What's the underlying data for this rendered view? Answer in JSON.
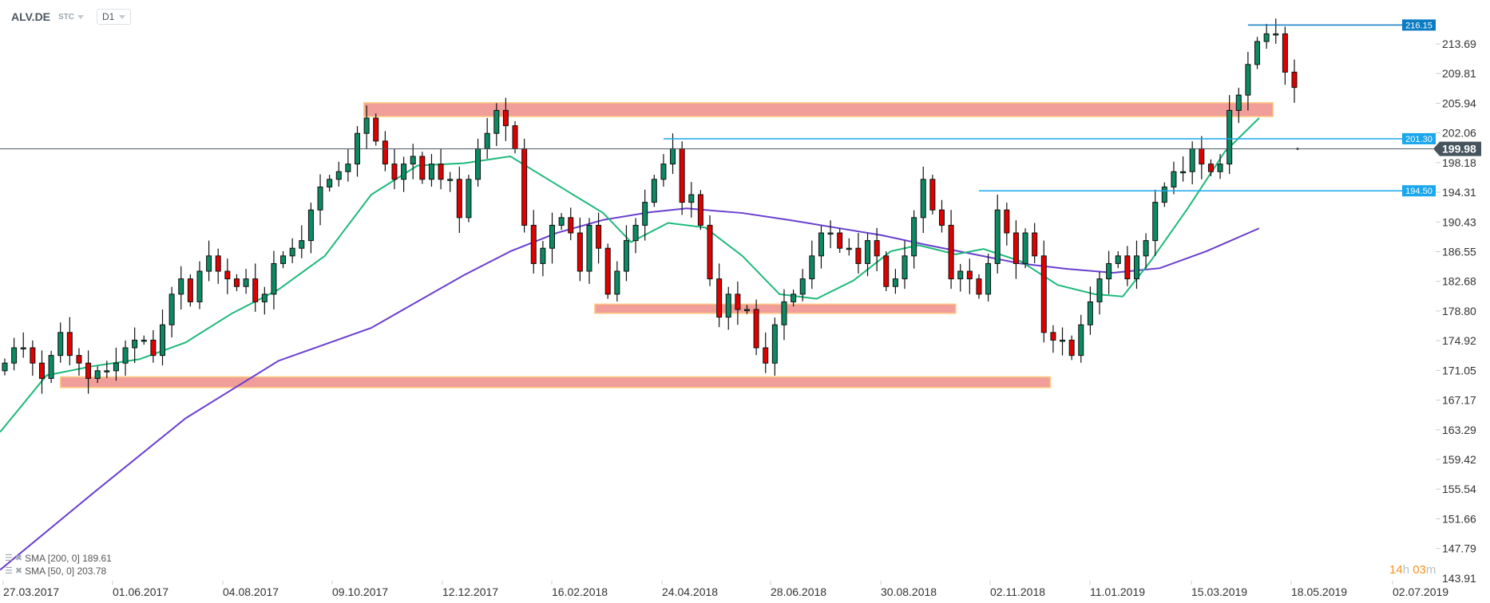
{
  "header": {
    "symbol": "ALV.DE",
    "mode": "STC",
    "timeframe": "D1"
  },
  "legend": [
    {
      "label": "SMA [200,  0] 189.61",
      "color": "#6a3fcf"
    },
    {
      "label": "SMA [50,  0] 203.78",
      "color": "#1db97a"
    }
  ],
  "timer": {
    "hours": "14",
    "h": "h",
    "minutes": "03",
    "m": "m"
  },
  "colors": {
    "up": "#0b8a63",
    "down": "#e00000",
    "zone": "#f19d99",
    "zone_border": "#ffcc80",
    "hline": "#1aa7ec",
    "current": "#46545e"
  },
  "chart_data": {
    "type": "candlestick",
    "title": "ALV.DE D1",
    "yticks": [
      "213.69",
      "209.81",
      "205.94",
      "202.06",
      "198.18",
      "194.31",
      "190.43",
      "186.55",
      "182.68",
      "178.80",
      "174.92",
      "171.05",
      "167.17",
      "163.29",
      "159.42",
      "155.54",
      "151.66",
      "147.79",
      "143.91"
    ],
    "ylim": [
      143.91,
      218
    ],
    "xticks": [
      "27.03.2017",
      "01.06.2017",
      "04.08.2017",
      "09.10.2017",
      "12.12.2017",
      "16.02.2018",
      "24.04.2018",
      "28.06.2018",
      "30.08.2018",
      "02.11.2018",
      "11.01.2019",
      "15.03.2019",
      "18.05.2019",
      "02.07.2019"
    ],
    "close": [
      172,
      174,
      174,
      172,
      170,
      173,
      176,
      173,
      172,
      170,
      171,
      171,
      172,
      174,
      175,
      175,
      173,
      177,
      181,
      183,
      180,
      184,
      186,
      184,
      183,
      182,
      183,
      180,
      181,
      185,
      186,
      187,
      188,
      192,
      195,
      196,
      197,
      198,
      202,
      204,
      201,
      198,
      196,
      198,
      199,
      196,
      198,
      196,
      196,
      191,
      196,
      200,
      202,
      205,
      203,
      200,
      190,
      185,
      187,
      190,
      191,
      189,
      184,
      190,
      187,
      181,
      184,
      188,
      190,
      193,
      196,
      198,
      200,
      193,
      194,
      190,
      183,
      178,
      181,
      179,
      179,
      174,
      172,
      177,
      180,
      181,
      183,
      186,
      189,
      189,
      187,
      187,
      185,
      188,
      186,
      182,
      183,
      186,
      191,
      196,
      192,
      190,
      183,
      184,
      183,
      181,
      185,
      192,
      189,
      185,
      189,
      186,
      176,
      175,
      175,
      173,
      177,
      180,
      183,
      185,
      186,
      183,
      186,
      188,
      193,
      195,
      197,
      197,
      200,
      198,
      197,
      198,
      205,
      207,
      211,
      214,
      215,
      215,
      210,
      208
    ],
    "sma200": [
      [
        -0.5,
        145
      ],
      [
        9.5,
        155
      ],
      [
        19.5,
        164.8
      ],
      [
        29.5,
        172.3
      ],
      [
        39.5,
        176.6
      ],
      [
        49.5,
        183.5
      ],
      [
        54.5,
        186.6
      ],
      [
        59.5,
        189
      ],
      [
        64.5,
        190.7
      ],
      [
        69.5,
        191.7
      ],
      [
        73.5,
        192.2
      ],
      [
        79.5,
        191.6
      ],
      [
        84.5,
        190.7
      ],
      [
        89.5,
        189.7
      ],
      [
        94.5,
        188.7
      ],
      [
        99.5,
        187.4
      ],
      [
        104.5,
        186.2
      ],
      [
        109.5,
        185
      ],
      [
        114.5,
        184.3
      ],
      [
        119.5,
        183.8
      ],
      [
        124.5,
        184.4
      ],
      [
        129.5,
        186.6
      ],
      [
        135.2,
        189.6
      ]
    ],
    "sma50": [
      [
        -0.5,
        163
      ],
      [
        4.5,
        170.4
      ],
      [
        9.5,
        171.6
      ],
      [
        14.5,
        172.5
      ],
      [
        19.5,
        174.7
      ],
      [
        24.5,
        178.5
      ],
      [
        29.5,
        181.6
      ],
      [
        34.5,
        186
      ],
      [
        39.5,
        194
      ],
      [
        44.5,
        197.8
      ],
      [
        49.5,
        198.1
      ],
      [
        54.5,
        199
      ],
      [
        59.5,
        195.3
      ],
      [
        64.5,
        191.6
      ],
      [
        67.5,
        187.8
      ],
      [
        71.5,
        190.3
      ],
      [
        75.5,
        189.7
      ],
      [
        79.5,
        186
      ],
      [
        83.5,
        181
      ],
      [
        87.5,
        180.4
      ],
      [
        91.5,
        182.8
      ],
      [
        95.5,
        186.6
      ],
      [
        98.5,
        187.4
      ],
      [
        102.5,
        186.2
      ],
      [
        105.5,
        186.9
      ],
      [
        109.5,
        185.3
      ],
      [
        113.5,
        182.2
      ],
      [
        117.5,
        181
      ],
      [
        120.5,
        180.7
      ],
      [
        123.5,
        185.3
      ],
      [
        127.5,
        192.2
      ],
      [
        131.5,
        199.6
      ],
      [
        135.2,
        204
      ]
    ],
    "zones": [
      {
        "from_index": 38.7,
        "to_index": 136.7,
        "low": 204.2,
        "high": 206.0
      },
      {
        "from_index": 63.6,
        "to_index": 102.5,
        "low": 178.5,
        "high": 179.7
      },
      {
        "from_index": 6.0,
        "to_index": 112.7,
        "low": 168.8,
        "high": 170.2
      }
    ],
    "levels": [
      {
        "price": 216.15,
        "label": "216.15",
        "from_index": 134.0,
        "style": "dark"
      },
      {
        "price": 201.3,
        "label": "201.30",
        "from_index": 71.0,
        "style": "light"
      },
      {
        "price": 194.5,
        "label": "194.50",
        "from_index": 105.0,
        "style": "light"
      }
    ],
    "current_price": {
      "price": 199.98,
      "label": "199.98"
    }
  }
}
